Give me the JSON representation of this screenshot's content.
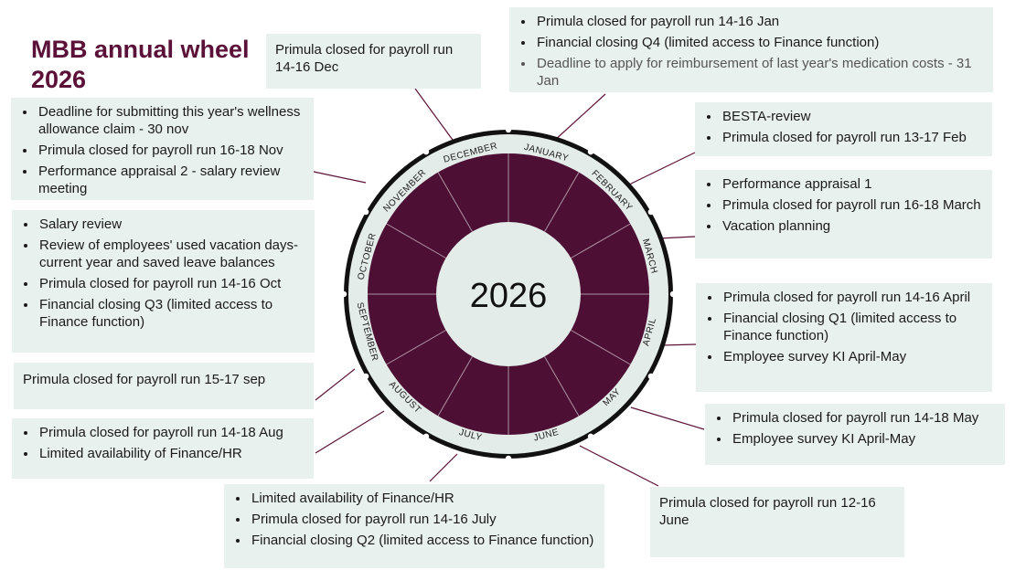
{
  "title_line1": "MBB annual wheel",
  "title_line2": "2026",
  "wheel": {
    "year": "2026",
    "months": [
      "JANUARY",
      "FEBRUARY",
      "MARCH",
      "APRIL",
      "MAY",
      "JUNE",
      "JULY",
      "AUGUST",
      "SEPTEMBER",
      "OCTOBER",
      "NOVEMBER",
      "DECEMBER"
    ],
    "colors": {
      "ring": "#4d0f33",
      "band": "#e4ecea",
      "divider": "#ffffff",
      "connector": "#5b1138"
    }
  },
  "notes": {
    "december": {
      "text": "Primula closed for payroll run 14-16 Dec"
    },
    "january": {
      "items": [
        "Primula closed for payroll run 14-16 Jan",
        "Financial closing Q4 (limited access to Finance function)",
        "Deadline to apply for reimbursement of last year's medication costs - 31 Jan"
      ]
    },
    "november": {
      "items": [
        "Deadline for submitting this year's wellness allowance claim - 30 nov",
        "Primula closed for payroll run 16-18 Nov",
        "Performance appraisal 2 - salary review meeting"
      ]
    },
    "february": {
      "items": [
        "BESTA-review",
        "Primula closed for payroll run 13-17 Feb"
      ]
    },
    "march": {
      "items": [
        "Performance appraisal 1",
        "Primula closed for payroll run 16-18 March",
        "Vacation planning"
      ]
    },
    "october": {
      "items": [
        "Salary review",
        "Review of employees' used vacation days-current year and saved leave balances",
        "Primula closed for payroll run 14-16 Oct",
        "Financial closing Q3 (limited access to Finance function)"
      ]
    },
    "april": {
      "items": [
        "Primula closed for payroll run 14-16 April",
        "Financial closing Q1 (limited access to Finance function)",
        "Employee survey KI April-May"
      ]
    },
    "september": {
      "text": "Primula closed for payroll run 15-17 sep"
    },
    "may": {
      "items": [
        "Primula closed for payroll run 14-18 May",
        "Employee survey KI April-May"
      ]
    },
    "august": {
      "items": [
        "Primula closed for payroll run 14-18 Aug",
        "Limited availability of Finance/HR"
      ]
    },
    "july": {
      "items": [
        "Limited availability of Finance/HR",
        "Primula closed for payroll run 14-16 July",
        "Financial closing Q2 (limited access to Finance function)"
      ]
    },
    "june": {
      "text": "Primula closed for payroll run 12-16 June"
    }
  }
}
